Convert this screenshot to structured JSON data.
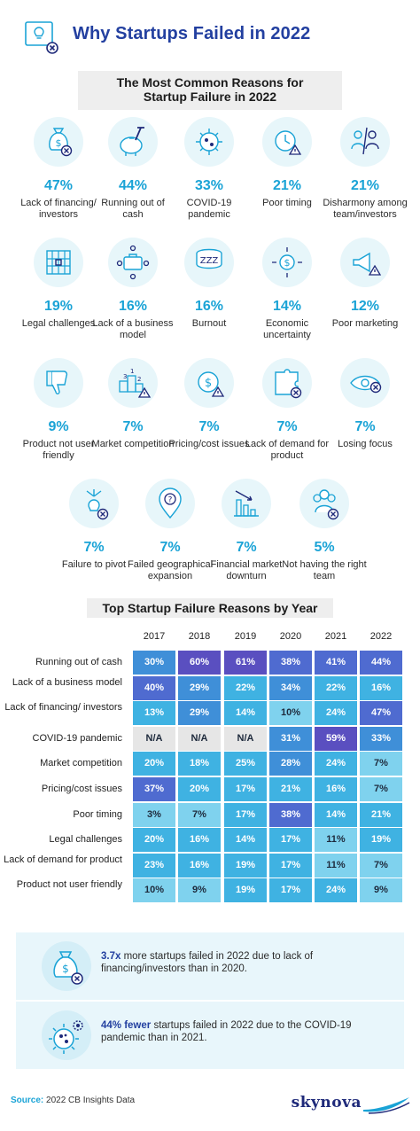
{
  "header": {
    "title": "Why Startups Failed in 2022",
    "icon": "lightbulb-x-icon"
  },
  "section1": {
    "title_line1": "The Most Common Reasons for",
    "title_line2": "Startup Failure in 2022"
  },
  "reasons": [
    {
      "pct": "47%",
      "label": "Lack of financing/ investors",
      "icon": "money-bag-x-icon"
    },
    {
      "pct": "44%",
      "label": "Running out of cash",
      "icon": "piggy-bank-hammer-icon"
    },
    {
      "pct": "33%",
      "label": "COVID-19 pandemic",
      "icon": "virus-icon"
    },
    {
      "pct": "21%",
      "label": "Poor timing",
      "icon": "clock-warning-icon"
    },
    {
      "pct": "21%",
      "label": "Disharmony among team/investors",
      "icon": "people-split-icon"
    },
    {
      "pct": "19%",
      "label": "Legal challenges",
      "icon": "grid-bars-icon"
    },
    {
      "pct": "16%",
      "label": "Lack of a business model",
      "icon": "briefcase-network-icon"
    },
    {
      "pct": "16%",
      "label": "Burnout",
      "icon": "sleep-bubble-icon"
    },
    {
      "pct": "14%",
      "label": "Economic uncertainty",
      "icon": "dollar-arrows-icon"
    },
    {
      "pct": "12%",
      "label": "Poor marketing",
      "icon": "megaphone-warning-icon"
    },
    {
      "pct": "9%",
      "label": "Product not user friendly",
      "icon": "thumbs-down-icon"
    },
    {
      "pct": "7%",
      "label": "Market competition",
      "icon": "podium-warning-icon"
    },
    {
      "pct": "7%",
      "label": "Pricing/cost issues",
      "icon": "dollar-coin-warning-icon"
    },
    {
      "pct": "7%",
      "label": "Lack of demand for product",
      "icon": "puzzle-x-icon"
    },
    {
      "pct": "7%",
      "label": "Losing focus",
      "icon": "eye-x-icon"
    },
    {
      "pct": "7%",
      "label": "Failure to pivot",
      "icon": "branch-bulb-icon"
    },
    {
      "pct": "7%",
      "label": "Failed geographical expansion",
      "icon": "map-pin-question-icon"
    },
    {
      "pct": "7%",
      "label": "Financial market downturn",
      "icon": "bar-chart-down-icon"
    },
    {
      "pct": "5%",
      "label": "Not having the right team",
      "icon": "team-x-icon"
    }
  ],
  "section2": {
    "title": "Top Startup Failure Reasons by Year"
  },
  "table": {
    "years": [
      "2017",
      "2018",
      "2019",
      "2020",
      "2021",
      "2022"
    ],
    "rows": [
      {
        "label": "Running out of cash",
        "values": [
          "30%",
          "60%",
          "61%",
          "38%",
          "41%",
          "44%"
        ]
      },
      {
        "label": "Lack of a business model",
        "values": [
          "40%",
          "29%",
          "22%",
          "34%",
          "22%",
          "16%"
        ]
      },
      {
        "label": "Lack of financing/ investors",
        "values": [
          "13%",
          "29%",
          "14%",
          "10%",
          "24%",
          "47%"
        ]
      },
      {
        "label": "COVID-19 pandemic",
        "values": [
          "N/A",
          "N/A",
          "N/A",
          "31%",
          "59%",
          "33%"
        ]
      },
      {
        "label": "Market competition",
        "values": [
          "20%",
          "18%",
          "25%",
          "28%",
          "24%",
          "7%"
        ]
      },
      {
        "label": "Pricing/cost issues",
        "values": [
          "37%",
          "20%",
          "17%",
          "21%",
          "16%",
          "7%"
        ]
      },
      {
        "label": "Poor timing",
        "values": [
          "3%",
          "7%",
          "17%",
          "38%",
          "14%",
          "21%"
        ]
      },
      {
        "label": "Legal challenges",
        "values": [
          "20%",
          "16%",
          "14%",
          "17%",
          "11%",
          "19%"
        ]
      },
      {
        "label": "Lack of demand for product",
        "values": [
          "23%",
          "16%",
          "19%",
          "17%",
          "11%",
          "7%"
        ]
      },
      {
        "label": "Product not user friendly",
        "values": [
          "10%",
          "9%",
          "19%",
          "17%",
          "24%",
          "9%"
        ]
      }
    ],
    "colors": {
      "darkest": "#5a4fc0",
      "dark": "#4f6bd0",
      "mid": "#3f8fd8",
      "light": "#3fb2e2",
      "lighter": "#7fd2ee",
      "na": "#e6e6e6"
    }
  },
  "stats": [
    {
      "bold": "3.7x",
      "text": " more startups failed in 2022 due to lack of financing/investors than in 2020.",
      "icon": "money-bag-x-icon"
    },
    {
      "bold": "44% fewer",
      "text": " startups failed in 2022 due to the COVID-19 pandemic than in 2021.",
      "icon": "virus-gear-icon"
    }
  ],
  "footer": {
    "source_key": "Source:",
    "source_text": " 2022 CB Insights Data",
    "brand": "skynova"
  },
  "colors": {
    "title_blue": "#2340a0",
    "accent_cyan": "#1aa3d6",
    "icon_bg": "#e7f6fa"
  }
}
